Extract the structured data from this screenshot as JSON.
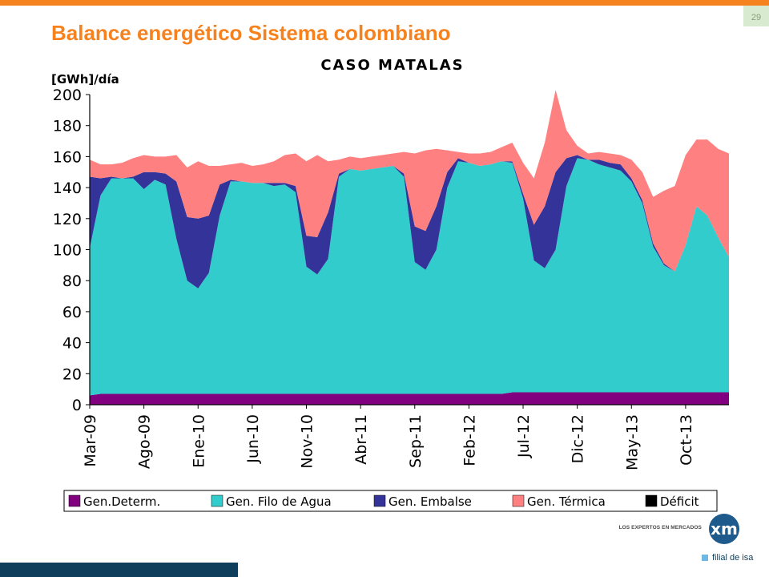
{
  "slide": {
    "title": "Balance energético Sistema colombiano",
    "page_number": "29",
    "accent_color": "#f5821f",
    "navy_color": "#0f3d5c"
  },
  "logo": {
    "tagline": "LOS EXPERTOS EN MERCADOS",
    "mark": "xm",
    "subtitle": "filial de isa"
  },
  "chart_data": {
    "type": "area",
    "stacked": true,
    "title": "CASO MATALAS",
    "ylabel": "[GWh]/día",
    "xlabel": "",
    "ylim": [
      0,
      200
    ],
    "yticks": [
      0,
      20,
      40,
      60,
      80,
      100,
      120,
      140,
      160,
      180,
      200
    ],
    "x_tick_labels": [
      "Mar-09",
      "Ago-09",
      "Ene-10",
      "Jun-10",
      "Nov-10",
      "Abr-11",
      "Sep-11",
      "Feb-12",
      "Jul-12",
      "Dic-12",
      "May-13",
      "Oct-13"
    ],
    "x_tick_interval_months": 5,
    "x_start": "Mar-09",
    "legend_placement": "bottom",
    "grid": false,
    "series": [
      {
        "name": "Gen.Determ.",
        "color": "#800080",
        "values": [
          6,
          7,
          7,
          7,
          7,
          7,
          7,
          7,
          7,
          7,
          7,
          7,
          7,
          7,
          7,
          7,
          7,
          7,
          7,
          7,
          7,
          7,
          7,
          7,
          7,
          7,
          7,
          7,
          7,
          7,
          7,
          7,
          7,
          7,
          7,
          7,
          7,
          7,
          7,
          8,
          8,
          8,
          8,
          8,
          8,
          8,
          8,
          8,
          8,
          8,
          8,
          8,
          8,
          8,
          8,
          8,
          8,
          8,
          8,
          8
        ]
      },
      {
        "name": "Gen. Filo de Agua",
        "color": "#33cccc",
        "values": [
          95,
          128,
          139,
          139,
          139,
          132,
          138,
          135,
          100,
          73,
          68,
          78,
          115,
          137,
          137,
          136,
          136,
          134,
          135,
          130,
          82,
          77,
          87,
          140,
          145,
          144,
          145,
          146,
          147,
          140,
          85,
          80,
          93,
          133,
          150,
          149,
          147,
          148,
          150,
          148,
          125,
          85,
          80,
          92,
          133,
          151,
          150,
          147,
          145,
          143,
          136,
          122,
          94,
          82,
          78,
          95,
          120,
          114,
          100,
          87
        ]
      },
      {
        "name": "Gen. Embalse",
        "color": "#333399",
        "values": [
          46,
          11,
          1,
          0,
          1,
          11,
          5,
          7,
          37,
          41,
          45,
          37,
          20,
          1,
          0,
          0,
          0,
          2,
          1,
          4,
          20,
          24,
          30,
          2,
          0,
          0,
          0,
          0,
          0,
          2,
          23,
          25,
          28,
          10,
          2,
          0,
          0,
          0,
          0,
          1,
          3,
          23,
          40,
          50,
          18,
          2,
          0,
          3,
          3,
          4,
          2,
          2,
          2,
          1,
          0,
          0,
          0,
          0,
          0,
          0
        ]
      },
      {
        "name": "Gen. Térmica",
        "color": "#ff8080",
        "values": [
          11,
          9,
          8,
          10,
          12,
          11,
          10,
          11,
          17,
          32,
          37,
          32,
          12,
          10,
          12,
          11,
          12,
          14,
          18,
          21,
          48,
          53,
          33,
          9,
          8,
          8,
          8,
          8,
          8,
          14,
          47,
          52,
          37,
          14,
          4,
          6,
          8,
          8,
          9,
          12,
          20,
          30,
          41,
          53,
          18,
          6,
          4,
          5,
          6,
          6,
          12,
          18,
          30,
          47,
          55,
          58,
          43,
          49,
          57,
          67
        ]
      },
      {
        "name": "Déficit",
        "color": "#000000",
        "values": [
          0,
          0,
          0,
          0,
          0,
          0,
          0,
          0,
          0,
          0,
          0,
          0,
          0,
          0,
          0,
          0,
          0,
          0,
          0,
          0,
          0,
          0,
          0,
          0,
          0,
          0,
          0,
          0,
          0,
          0,
          0,
          0,
          0,
          0,
          0,
          0,
          0,
          0,
          0,
          0,
          0,
          0,
          0,
          0,
          0,
          0,
          0,
          0,
          0,
          0,
          0,
          0,
          0,
          0,
          0,
          0,
          0,
          0,
          0,
          0
        ]
      }
    ]
  }
}
